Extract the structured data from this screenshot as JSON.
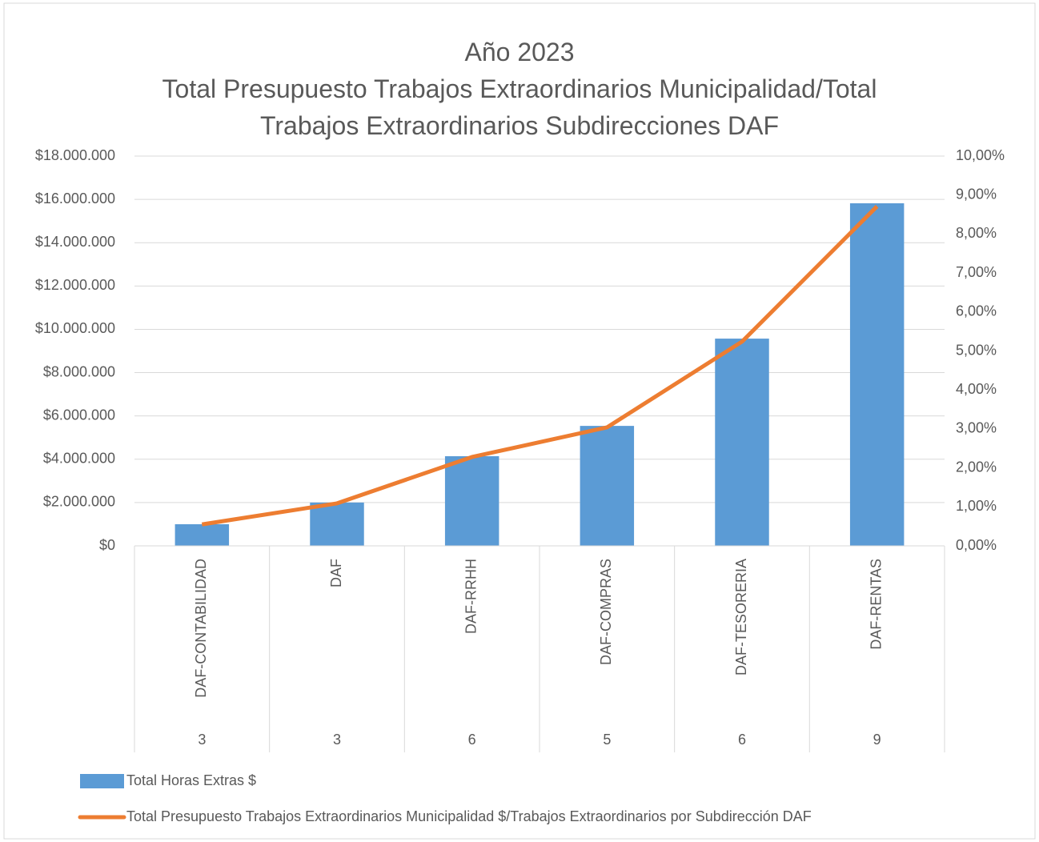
{
  "chart_data": {
    "type": "bar_line",
    "title": "Año 2023",
    "subtitle": "Total Presupuesto Trabajos Extraordinarios Municipalidad/Total Trabajos Extraordinarios Subdirecciones DAF",
    "categories": [
      "DAF-CONTABILIDAD",
      "DAF",
      "DAF-RRHH",
      "DAF-COMPRAS",
      "DAF-TESORERIA",
      "DAF-RENTAS"
    ],
    "category_counts": [
      3,
      3,
      6,
      5,
      6,
      9
    ],
    "series": [
      {
        "name": "Total Horas Extras $",
        "type": "bar",
        "color": "#5b9bd5",
        "axis": "y",
        "values": [
          1000000,
          2000000,
          4140000,
          5540000,
          9570000,
          15820000
        ]
      },
      {
        "name": "Total Presupuesto Trabajos Extraordinarios Municipalidad $/Trabajos Extraordinarios por Subdirección DAF",
        "type": "line",
        "color": "#ed7d31",
        "axis": "y2",
        "values": [
          0.55,
          1.09,
          2.28,
          3.04,
          5.24,
          8.71
        ]
      }
    ],
    "ylim": [
      0,
      18000000
    ],
    "yticks": [
      {
        "value": 0,
        "label": "$0"
      },
      {
        "value": 2000000,
        "label": "$2.000.000"
      },
      {
        "value": 4000000,
        "label": "$4.000.000"
      },
      {
        "value": 6000000,
        "label": "$6.000.000"
      },
      {
        "value": 8000000,
        "label": "$8.000.000"
      },
      {
        "value": 10000000,
        "label": "$10.000.000"
      },
      {
        "value": 12000000,
        "label": "$12.000.000"
      },
      {
        "value": 14000000,
        "label": "$14.000.000"
      },
      {
        "value": 16000000,
        "label": "$16.000.000"
      },
      {
        "value": 18000000,
        "label": "$18.000.000"
      }
    ],
    "y2lim": [
      0,
      10
    ],
    "y2ticks": [
      {
        "value": 0,
        "label": "0,00%"
      },
      {
        "value": 1,
        "label": "1,00%"
      },
      {
        "value": 2,
        "label": "2,00%"
      },
      {
        "value": 3,
        "label": "3,00%"
      },
      {
        "value": 4,
        "label": "4,00%"
      },
      {
        "value": 5,
        "label": "5,00%"
      },
      {
        "value": 6,
        "label": "6,00%"
      },
      {
        "value": 7,
        "label": "7,00%"
      },
      {
        "value": 8,
        "label": "8,00%"
      },
      {
        "value": 9,
        "label": "9,00%"
      },
      {
        "value": 10,
        "label": "10,00%"
      }
    ],
    "grid": true,
    "legend": "bottom"
  }
}
